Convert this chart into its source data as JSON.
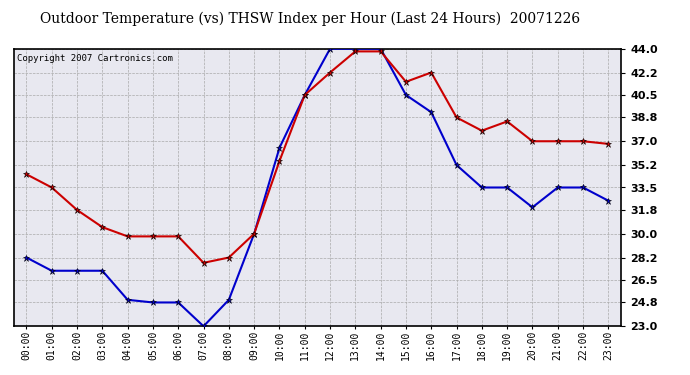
{
  "title": "Outdoor Temperature (vs) THSW Index per Hour (Last 24 Hours)  20071226",
  "copyright": "Copyright 2007 Cartronics.com",
  "hours": [
    "00:00",
    "01:00",
    "02:00",
    "03:00",
    "04:00",
    "05:00",
    "06:00",
    "07:00",
    "08:00",
    "09:00",
    "10:00",
    "11:00",
    "12:00",
    "13:00",
    "14:00",
    "15:00",
    "16:00",
    "17:00",
    "18:00",
    "19:00",
    "20:00",
    "21:00",
    "22:00",
    "23:00"
  ],
  "temp": [
    34.5,
    33.5,
    31.8,
    30.5,
    29.8,
    29.8,
    29.8,
    27.8,
    28.2,
    30.0,
    35.5,
    40.5,
    42.2,
    43.8,
    43.8,
    41.5,
    42.2,
    38.8,
    37.8,
    38.5,
    37.0,
    37.0,
    37.0,
    36.8
  ],
  "thsw": [
    28.2,
    27.2,
    27.2,
    27.2,
    25.0,
    24.8,
    24.8,
    23.0,
    25.0,
    30.0,
    36.5,
    40.5,
    44.0,
    44.0,
    44.0,
    40.5,
    39.2,
    35.2,
    33.5,
    33.5,
    32.0,
    33.5,
    33.5,
    32.5
  ],
  "temp_color": "#cc0000",
  "thsw_color": "#0000cc",
  "bg_color": "#e8e8f0",
  "grid_color": "#aaaaaa",
  "yticks": [
    23.0,
    24.8,
    26.5,
    28.2,
    30.0,
    31.8,
    33.5,
    35.2,
    37.0,
    38.8,
    40.5,
    42.2,
    44.0
  ],
  "ymin": 23.0,
  "ymax": 44.0,
  "title_fontsize": 10,
  "copyright_fontsize": 6.5,
  "tick_fontsize": 7,
  "ytick_fontsize": 8
}
